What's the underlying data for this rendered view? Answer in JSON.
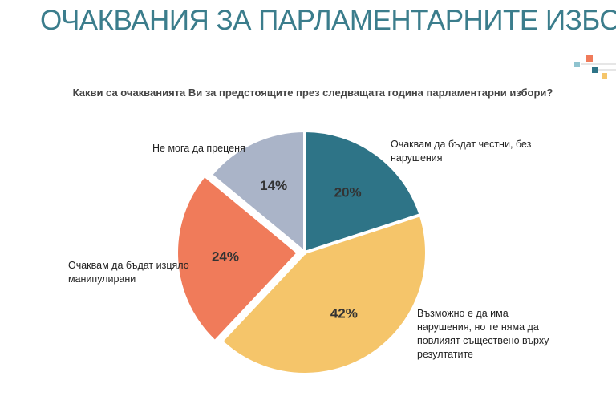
{
  "chart_data": {
    "type": "pie",
    "title": "ОЧАКВАНИЯ ЗА ПАРЛАМЕНТАРНИТЕ ИЗБОРИ",
    "subtitle": "Какви са очакванията Ви за предстоящите през следващата година парламентарни избори?",
    "categories": [
      "Очаквам да бъдат честни, без нарушения",
      "Възможно е да има нарушения, но те няма да повлияят съществено върху резултатите",
      "Очаквам да бъдат изцяло манипулирани",
      "Не мога да преценя"
    ],
    "values": [
      20,
      42,
      24,
      14
    ],
    "value_labels": [
      "20%",
      "42%",
      "24%",
      "14%"
    ],
    "colors": [
      "#2e7487",
      "#f5c56a",
      "#f07b5a",
      "#aab4c8"
    ]
  }
}
